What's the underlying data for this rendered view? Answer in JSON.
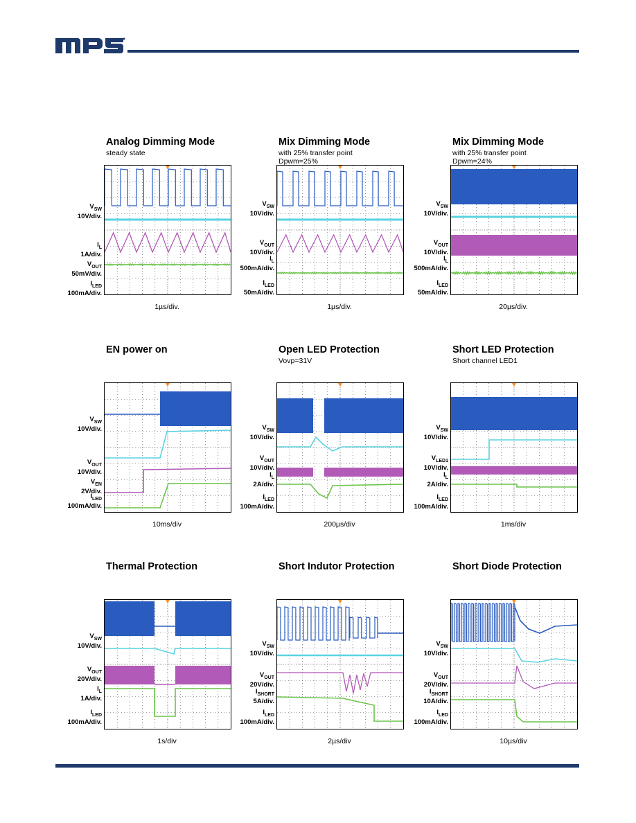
{
  "header": {
    "logo_text": "mps"
  },
  "panels": [
    {
      "title": "Analog Dimming Mode",
      "sub": [
        "steady state"
      ],
      "timebase": "1µs/div.",
      "labels": [
        [
          "V",
          "SW",
          " 10V/div."
        ],
        [
          "I",
          "L",
          " 1A/div."
        ],
        [
          "V",
          "OUT",
          " 50mV/div."
        ],
        [
          "I",
          "LED",
          " 100mA/div."
        ]
      ]
    },
    {
      "title": "Mix Dimming Mode",
      "sub": [
        "with 25% transfer point",
        "Dpwm=25%"
      ],
      "timebase": "1µs/div.",
      "labels": [
        [
          "V",
          "SW",
          " 10V/div."
        ],
        [
          "V",
          "OUT",
          " 10V/div."
        ],
        [
          "I",
          "L",
          " 500mA/div."
        ],
        [
          "I",
          "LED",
          " 50mA/div."
        ]
      ]
    },
    {
      "title": "Mix Dimming Mode",
      "sub": [
        "with 25% transfer point",
        "Dpwm=24%"
      ],
      "timebase": "20µs/div.",
      "labels": [
        [
          "V",
          "SW",
          " 10V/div."
        ],
        [
          "V",
          "OUT",
          " 10V/div."
        ],
        [
          "I",
          "L",
          " 500mA/div."
        ],
        [
          "I",
          "LED",
          " 50mA/div."
        ]
      ]
    },
    {
      "title": "EN power on",
      "sub": [],
      "timebase": "10ms/div",
      "labels": [
        [
          "V",
          "SW",
          " 10V/div."
        ],
        [
          "V",
          "OUT",
          " 10V/div."
        ],
        [
          "V",
          "EN",
          " 2V/div."
        ],
        [
          "I",
          "LED",
          " 100mA/div."
        ]
      ]
    },
    {
      "title": "Open LED Protection",
      "sub": [
        "Vovp=31V"
      ],
      "timebase": "200µs/div",
      "labels": [
        [
          "V",
          "SW",
          " 10V/div."
        ],
        [
          "V",
          "OUT",
          " 10V/div."
        ],
        [
          "I",
          "L",
          " 2A/div."
        ],
        [
          "I",
          "LED",
          " 100mA/div."
        ]
      ]
    },
    {
      "title": "Short LED Protection",
      "sub": [
        "Short channel LED1"
      ],
      "timebase": "1ms/div",
      "labels": [
        [
          "V",
          "SW",
          " 10V/div."
        ],
        [
          "V",
          "LED1",
          " 10V/div."
        ],
        [
          "I",
          "L",
          " 2A/div."
        ],
        [
          "I",
          "LED",
          " 100mA/div."
        ]
      ]
    },
    {
      "title": "Thermal Protection",
      "sub": [],
      "timebase": "1s/div",
      "labels": [
        [
          "V",
          "SW",
          " 10V/div."
        ],
        [
          "V",
          "OUT",
          " 20V/div."
        ],
        [
          "I",
          "L",
          " 1A/div."
        ],
        [
          "I",
          "LED",
          " 100mA/div."
        ]
      ]
    },
    {
      "title": "Short Indutor Protection",
      "sub": [],
      "timebase": "2µs/div",
      "labels": [
        [
          "V",
          "SW",
          " 10V/div."
        ],
        [
          "V",
          "OUT",
          " 20V/div."
        ],
        [
          "I",
          "SHORT",
          " 5A/div."
        ],
        [
          "I",
          "LED",
          " 100mA/div."
        ]
      ]
    },
    {
      "title": "Short Diode Protection",
      "sub": [],
      "timebase": "10µs/div",
      "labels": [
        [
          "V",
          "SW",
          " 10V/div."
        ],
        [
          "V",
          "OUT",
          " 20V/div."
        ],
        [
          "I",
          "SHORT",
          " 10A/div."
        ],
        [
          "I",
          "LED",
          " 100mA/div."
        ]
      ]
    }
  ],
  "colors": {
    "ch1": "#2a5cc0",
    "ch2": "#59d2e0",
    "ch3": "#b25ab8",
    "ch4": "#6cc44a",
    "header_bar": "#1e3a6b"
  }
}
